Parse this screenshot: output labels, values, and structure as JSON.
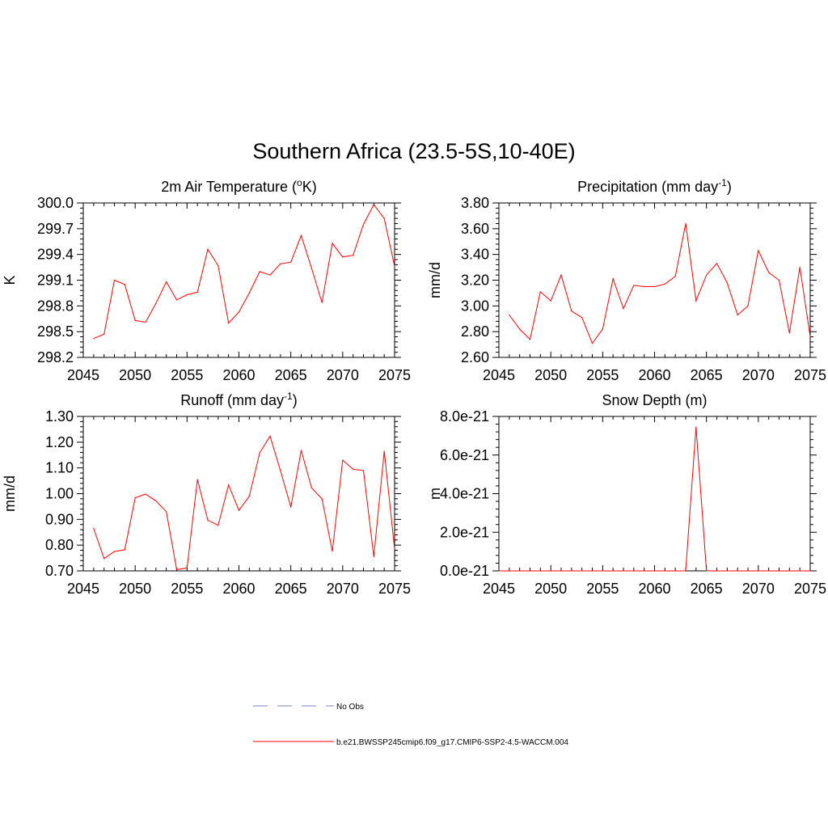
{
  "title": "Southern Africa (23.5-5S,10-40E)",
  "colors": {
    "model_line": "#ff0000",
    "obs_line": "#9999cc",
    "axis": "#000000"
  },
  "legend": {
    "obs_label": "No Obs",
    "model_label": "b.e21.BWSSP245cmip6.f09_g17.CMIP6-SSP2-4.5-WACCM.004"
  },
  "chart_data": [
    {
      "type": "line",
      "title": "2m Air Temperature (",
      "title_sup": "o",
      "title_tail": "K)",
      "title_sup_position": "before",
      "ylabel": "K",
      "xlim": [
        2045,
        2075
      ],
      "ylim": [
        298.2,
        300.0
      ],
      "xticks": [
        2045,
        2050,
        2055,
        2060,
        2065,
        2070,
        2075
      ],
      "yticks": [
        "298.2",
        "298.5",
        "298.8",
        "299.1",
        "299.4",
        "299.7",
        "300.0"
      ],
      "ytick_values": [
        298.2,
        298.5,
        298.8,
        299.1,
        299.4,
        299.7,
        300.0
      ],
      "series": [
        {
          "x": [
            2046,
            2047,
            2048,
            2049,
            2050,
            2051,
            2052,
            2053,
            2054,
            2055,
            2056,
            2057,
            2058,
            2059,
            2060,
            2061,
            2062,
            2063,
            2064,
            2065,
            2066,
            2067,
            2068,
            2069,
            2070,
            2071,
            2072,
            2073,
            2074,
            2075
          ],
          "values": [
            298.42,
            298.47,
            299.1,
            299.05,
            298.63,
            298.61,
            298.83,
            299.08,
            298.87,
            298.93,
            298.96,
            299.46,
            299.27,
            298.6,
            298.73,
            298.95,
            299.2,
            299.16,
            299.29,
            299.31,
            299.62,
            299.24,
            298.84,
            299.53,
            299.37,
            299.39,
            299.75,
            299.98,
            299.82,
            299.26
          ]
        }
      ]
    },
    {
      "type": "line",
      "title": "Precipitation (mm day",
      "title_sup": "-1",
      "title_tail": ")",
      "ylabel": "mm/d",
      "xlim": [
        2045,
        2075
      ],
      "ylim": [
        2.6,
        3.8
      ],
      "xticks": [
        2045,
        2050,
        2055,
        2060,
        2065,
        2070,
        2075
      ],
      "yticks": [
        "2.60",
        "2.80",
        "3.00",
        "3.20",
        "3.40",
        "3.60",
        "3.80"
      ],
      "ytick_values": [
        2.6,
        2.8,
        3.0,
        3.2,
        3.4,
        3.6,
        3.8
      ],
      "series": [
        {
          "x": [
            2046,
            2047,
            2048,
            2049,
            2050,
            2051,
            2052,
            2053,
            2054,
            2055,
            2056,
            2057,
            2058,
            2059,
            2060,
            2061,
            2062,
            2063,
            2064,
            2065,
            2066,
            2067,
            2068,
            2069,
            2070,
            2071,
            2072,
            2073,
            2074,
            2075
          ],
          "values": [
            2.93,
            2.82,
            2.74,
            3.11,
            3.04,
            3.24,
            2.96,
            2.91,
            2.71,
            2.82,
            3.21,
            2.98,
            3.16,
            3.15,
            3.15,
            3.17,
            3.23,
            3.64,
            3.04,
            3.24,
            3.33,
            3.18,
            2.93,
            3.0,
            3.43,
            3.26,
            3.2,
            2.79,
            3.3,
            2.76
          ]
        }
      ]
    },
    {
      "type": "line",
      "title": "Runoff (mm day",
      "title_sup": "-1",
      "title_tail": ")",
      "ylabel": "mm/d",
      "xlim": [
        2045,
        2075
      ],
      "ylim": [
        0.7,
        1.3
      ],
      "xticks": [
        2045,
        2050,
        2055,
        2060,
        2065,
        2070,
        2075
      ],
      "yticks": [
        "0.70",
        "0.80",
        "0.90",
        "1.00",
        "1.10",
        "1.20",
        "1.30"
      ],
      "ytick_values": [
        0.7,
        0.8,
        0.9,
        1.0,
        1.1,
        1.2,
        1.3
      ],
      "series": [
        {
          "x": [
            2046,
            2047,
            2048,
            2049,
            2050,
            2051,
            2052,
            2053,
            2054,
            2055,
            2056,
            2057,
            2058,
            2059,
            2060,
            2061,
            2062,
            2063,
            2064,
            2065,
            2066,
            2067,
            2068,
            2069,
            2070,
            2071,
            2072,
            2073,
            2074,
            2075
          ],
          "values": [
            0.865,
            0.748,
            0.775,
            0.782,
            0.984,
            0.998,
            0.972,
            0.93,
            0.705,
            0.711,
            1.055,
            0.897,
            0.877,
            1.034,
            0.935,
            0.99,
            1.159,
            1.223,
            1.09,
            0.948,
            1.168,
            1.023,
            0.98,
            0.776,
            1.13,
            1.095,
            1.09,
            0.755,
            1.165,
            0.785
          ]
        }
      ]
    },
    {
      "type": "line",
      "title": "Snow Depth (m)",
      "title_sup": "",
      "title_tail": "",
      "ylabel": "m",
      "xlim": [
        2045,
        2075
      ],
      "ylim": [
        0,
        8e-21
      ],
      "xticks": [
        2045,
        2050,
        2055,
        2060,
        2065,
        2070,
        2075
      ],
      "yticks": [
        "0.0e-21",
        "2.0e-21",
        "4.0e-21",
        "6.0e-21",
        "8.0e-21"
      ],
      "ytick_values": [
        0,
        2e-21,
        4e-21,
        6e-21,
        8e-21
      ],
      "series": [
        {
          "x": [
            2045,
            2046,
            2047,
            2048,
            2049,
            2050,
            2051,
            2052,
            2053,
            2054,
            2055,
            2056,
            2057,
            2058,
            2059,
            2060,
            2061,
            2062,
            2063,
            2064,
            2065,
            2066,
            2067,
            2068,
            2069,
            2070,
            2071,
            2072,
            2073,
            2074,
            2075
          ],
          "values": [
            0,
            0,
            0,
            0,
            0,
            0,
            0,
            0,
            0,
            0,
            0,
            0,
            0,
            0,
            0,
            0,
            0,
            0,
            0,
            7.45e-21,
            0,
            0,
            0,
            0,
            0,
            0,
            0,
            0,
            0,
            0,
            0
          ]
        }
      ]
    }
  ]
}
